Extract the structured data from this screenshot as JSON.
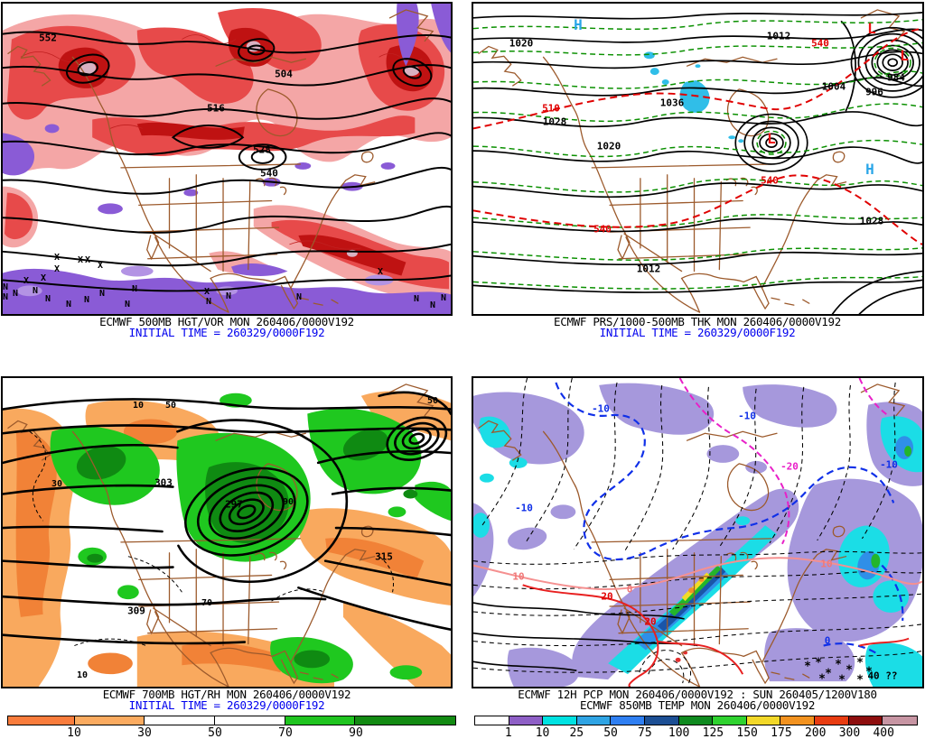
{
  "panels": {
    "vort500": {
      "caption": "ECMWF 500MB HGT/VOR MON 260406/0000V192",
      "initial_time": "INITIAL TIME = 260329/0000F192",
      "height_labels": [
        "552",
        "504",
        "516",
        "528",
        "540"
      ],
      "vort_max_symbol": "X",
      "vort_min_symbol": "N"
    },
    "mslpthk": {
      "caption": "ECMWF PRS/1000-500MB THK MON 260406/0000V192",
      "initial_time": "INITIAL TIME = 260329/0000F192",
      "pressure_labels": [
        "1020",
        "1012",
        "1028",
        "1036",
        "1020",
        "1012",
        "1004",
        "996",
        "984",
        "1028"
      ],
      "thickness_labels": [
        "510",
        "540",
        "540",
        "540"
      ],
      "high_symbol": "H",
      "low_symbol": "L"
    },
    "rh700": {
      "caption": "ECMWF 700MB HGT/RH MON 260406/0000V192",
      "initial_time": "INITIAL TIME = 260329/0000F192",
      "height_labels": [
        "297",
        "303",
        "309",
        "315"
      ],
      "rh_labels": [
        "10",
        "50",
        "30",
        "70",
        "90",
        "10",
        "50"
      ]
    },
    "pcp850": {
      "caption": "ECMWF 12H PCP MON 260406/0000V192 : SUN 260405/1200V180",
      "caption2": "ECMWF 850MB TEMP MON 260406/0000V192",
      "cold_labels": [
        "-10",
        "-10",
        "-10",
        "-10",
        "0"
      ],
      "magenta_label": "-20",
      "warm_labels": [
        "10",
        "0",
        "10",
        "20",
        "20"
      ],
      "snow_symbol": "*",
      "misc_label": "40 ??"
    }
  },
  "colorbars": {
    "rh": {
      "ticks": [
        "10",
        "30",
        "50",
        "70",
        "90"
      ],
      "colors": [
        "#F97C3C",
        "#FBAB60",
        "#FFFFFF",
        "#FFFFFF",
        "#1FC41F",
        "#128A12"
      ],
      "widths": [
        74,
        78,
        78,
        78,
        78,
        111
      ]
    },
    "pcp": {
      "ticks": [
        "1",
        "10",
        "25",
        "50",
        "75",
        "100",
        "125",
        "150",
        "175",
        "200",
        "300",
        "400"
      ],
      "colors": [
        "#FFFFFF",
        "#8E5FC6",
        "#00E2E2",
        "#2FA4E4",
        "#2F7FF2",
        "#1C4F94",
        "#0F8A1F",
        "#2FD22F",
        "#F2D829",
        "#F2921F",
        "#E83C11",
        "#8E0E0E",
        "#C795A3"
      ]
    }
  },
  "accent_colors": {
    "initial_time_blue": "#0000EE",
    "high_symbol_blue": "#2AA6E8",
    "low_symbol_red": "#EE1212",
    "geography_brown": "#9C5A2C"
  }
}
